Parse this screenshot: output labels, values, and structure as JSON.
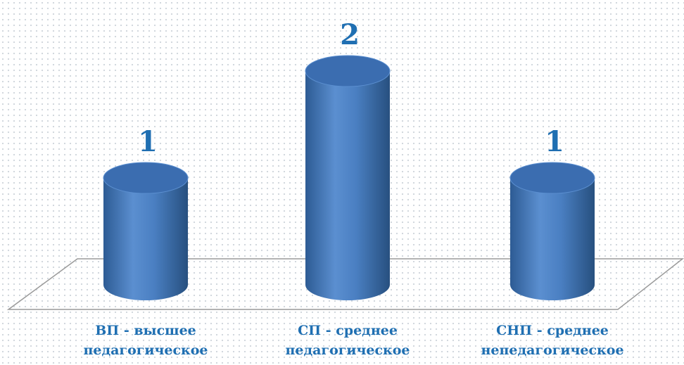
{
  "chart_data": {
    "type": "bar",
    "style": "3d-cylinder",
    "categories": [
      [
        "ВП - высшее",
        "педагогическое"
      ],
      [
        "СП - среднее",
        "педагогическое"
      ],
      [
        "СНП - среднее",
        "непедагогическое"
      ]
    ],
    "values": [
      1,
      2,
      1
    ],
    "data_labels": [
      "1",
      "2",
      "1"
    ],
    "title": "",
    "xlabel": "",
    "ylabel": "",
    "ylim": [
      0,
      2
    ],
    "legend": "none",
    "grid": false,
    "colors": {
      "bar": "#4f81c4",
      "bar_dark": "#2f5d95",
      "bar_top": "#3b6db0",
      "label": "#1f6fb2",
      "floor_line": "#9a9a9a"
    }
  }
}
